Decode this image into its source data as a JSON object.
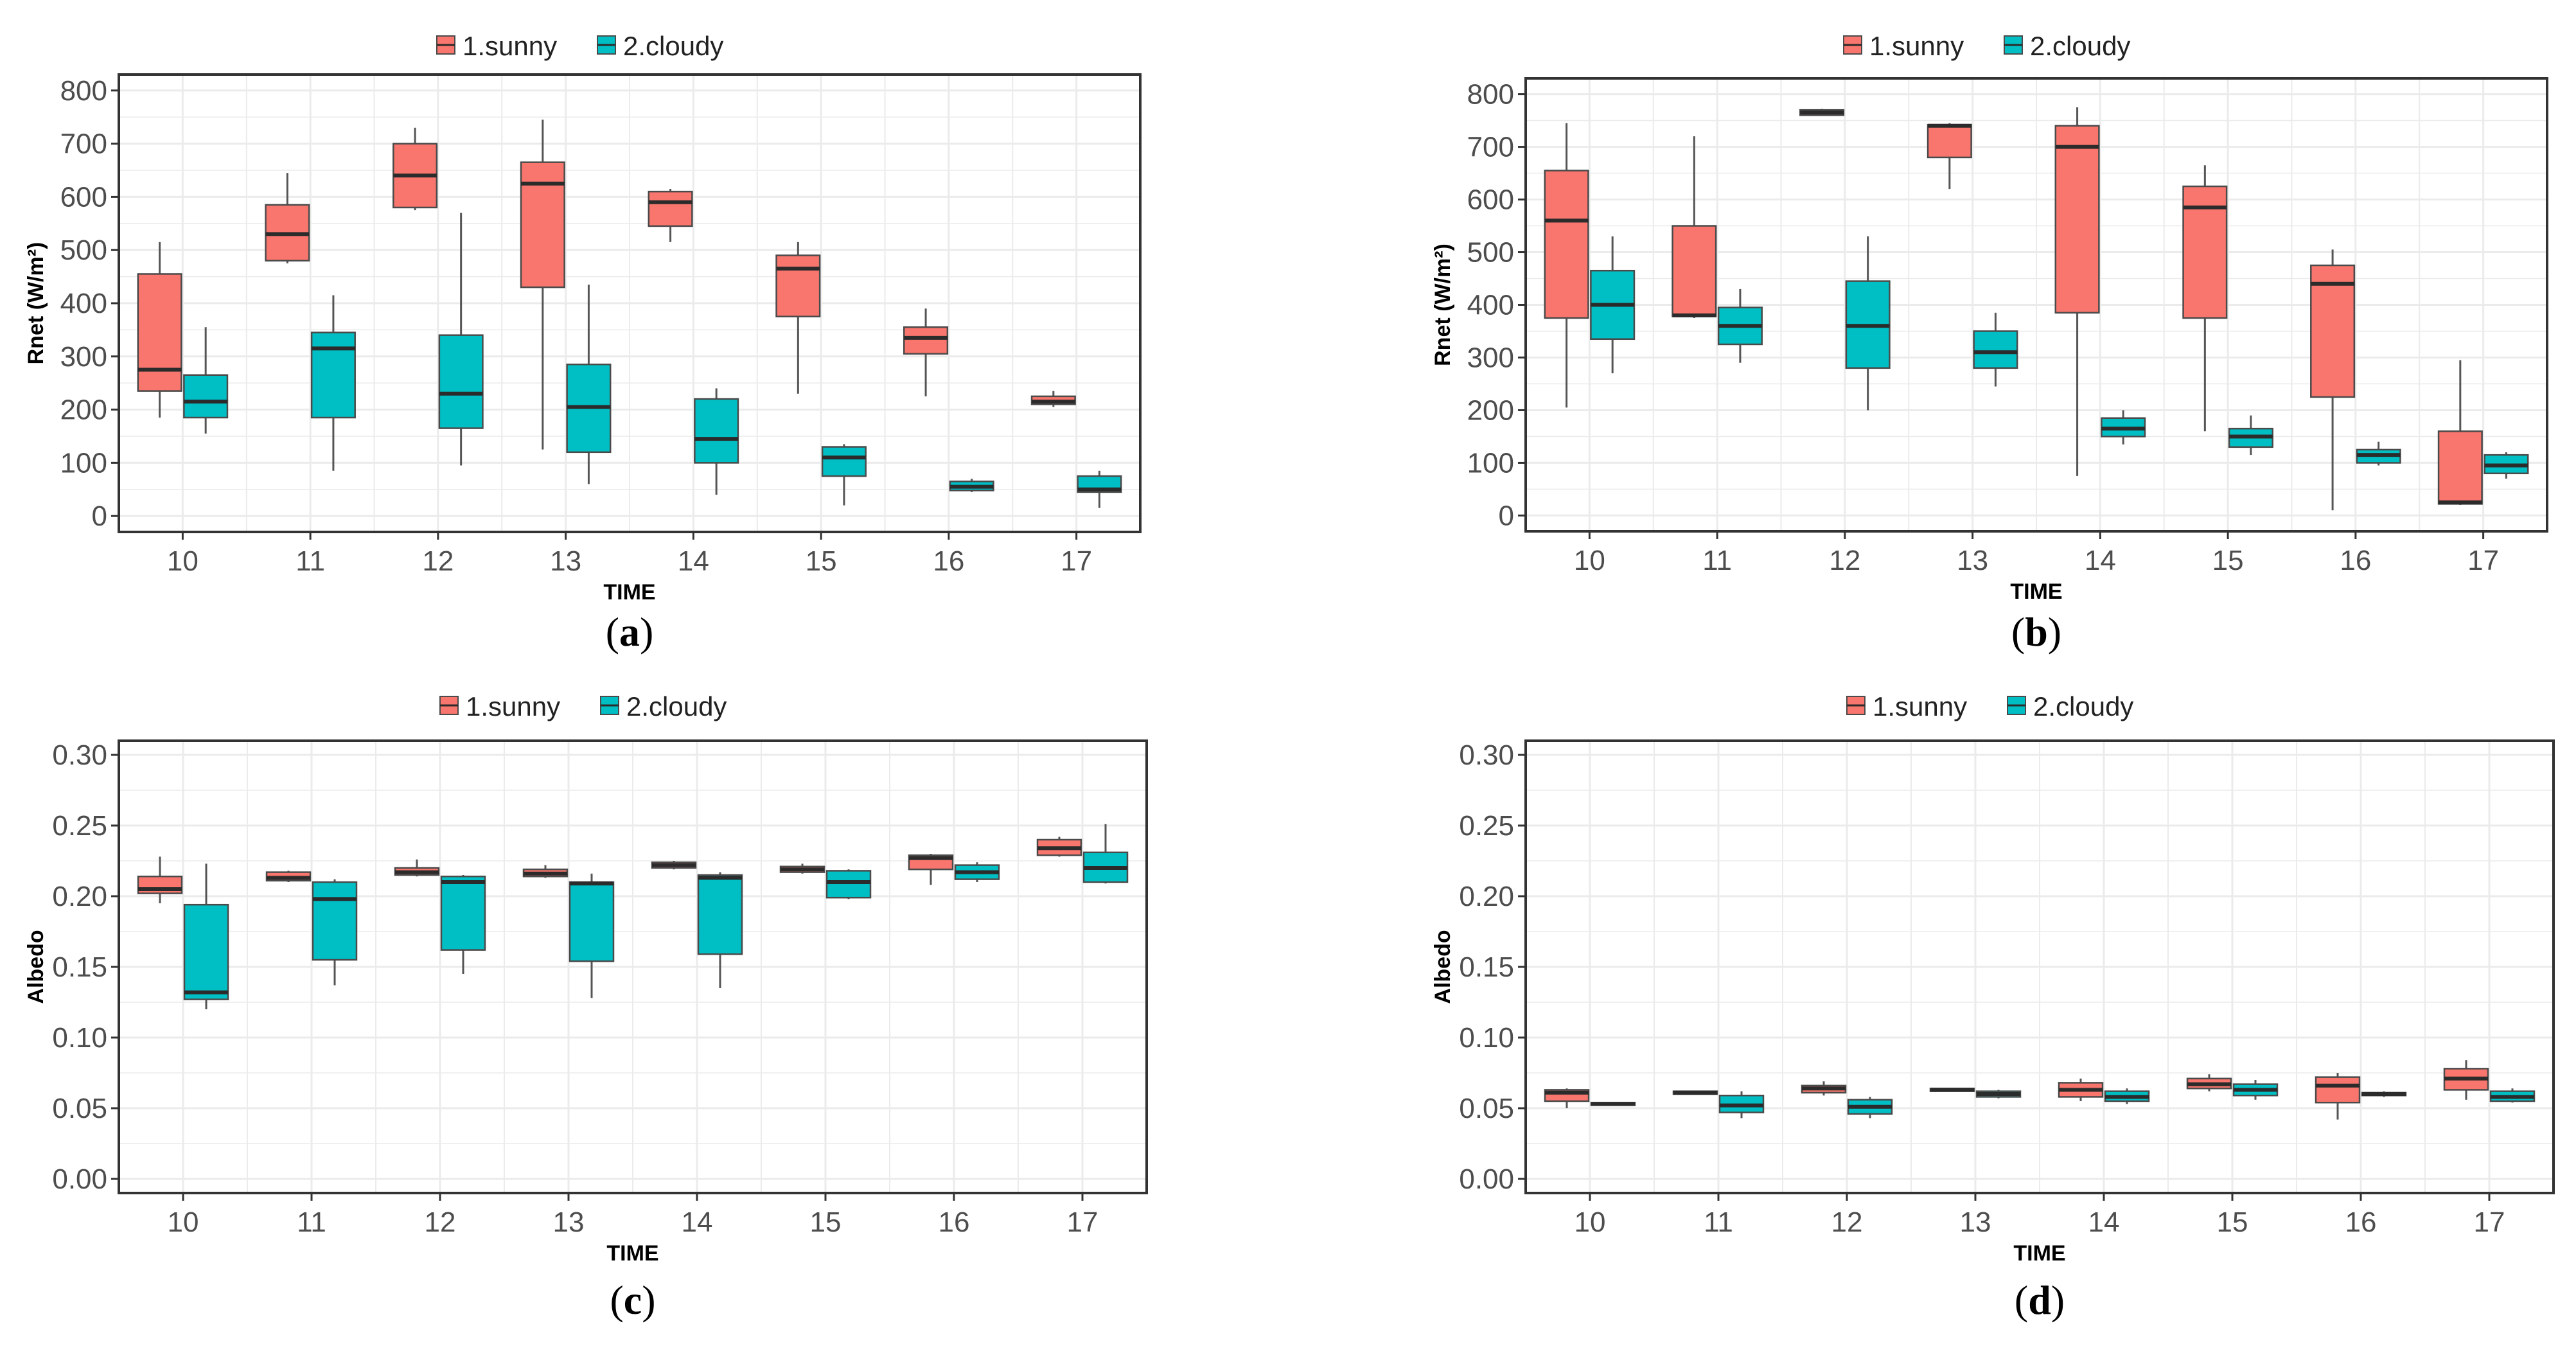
{
  "figure": {
    "colors": {
      "sunny": "#F8766D",
      "cloudy": "#00BFC4",
      "grid": "#ebebeb",
      "frame": "#333333",
      "median": "#2b2b2b"
    }
  },
  "chart_data": [
    {
      "type": "boxplot",
      "caption": "a",
      "xlabel": "TIME",
      "ylabel": "Rnet (W/m²)",
      "ylim": [
        -30,
        830
      ],
      "y_ticks": [
        "0",
        "100",
        "200",
        "300",
        "400",
        "500",
        "600",
        "700",
        "800"
      ],
      "y_tick_values": [
        0,
        100,
        200,
        300,
        400,
        500,
        600,
        700,
        800
      ],
      "categories": [
        "10",
        "11",
        "12",
        "13",
        "14",
        "15",
        "16",
        "17"
      ],
      "legend": [
        "1.sunny",
        "2.cloudy"
      ],
      "series": [
        {
          "name": "1.sunny",
          "boxes": [
            {
              "min": 185,
              "q1": 235,
              "median": 275,
              "q3": 455,
              "max": 515
            },
            {
              "min": 475,
              "q1": 480,
              "median": 530,
              "q3": 585,
              "max": 645
            },
            {
              "min": 575,
              "q1": 580,
              "median": 640,
              "q3": 700,
              "max": 730
            },
            {
              "min": 125,
              "q1": 430,
              "median": 625,
              "q3": 665,
              "max": 745
            },
            {
              "min": 515,
              "q1": 545,
              "median": 590,
              "q3": 610,
              "max": 615
            },
            {
              "min": 230,
              "q1": 375,
              "median": 465,
              "q3": 490,
              "max": 515
            },
            {
              "min": 225,
              "q1": 305,
              "median": 335,
              "q3": 355,
              "max": 390
            },
            {
              "min": 205,
              "q1": 210,
              "median": 215,
              "q3": 225,
              "max": 235
            }
          ]
        },
        {
          "name": "2.cloudy",
          "boxes": [
            {
              "min": 155,
              "q1": 185,
              "median": 215,
              "q3": 265,
              "max": 355
            },
            {
              "min": 85,
              "q1": 185,
              "median": 315,
              "q3": 345,
              "max": 415
            },
            {
              "min": 95,
              "q1": 165,
              "median": 230,
              "q3": 340,
              "max": 570
            },
            {
              "min": 60,
              "q1": 120,
              "median": 205,
              "q3": 285,
              "max": 435
            },
            {
              "min": 40,
              "q1": 100,
              "median": 145,
              "q3": 220,
              "max": 240
            },
            {
              "min": 20,
              "q1": 75,
              "median": 110,
              "q3": 130,
              "max": 135
            },
            {
              "min": 45,
              "q1": 48,
              "median": 55,
              "q3": 65,
              "max": 70
            },
            {
              "min": 15,
              "q1": 45,
              "median": 50,
              "q3": 75,
              "max": 85
            }
          ]
        }
      ]
    },
    {
      "type": "boxplot",
      "caption": "b",
      "xlabel": "TIME",
      "ylabel": "Rnet (W/m²)",
      "ylim": [
        -30,
        830
      ],
      "y_ticks": [
        "0",
        "100",
        "200",
        "300",
        "400",
        "500",
        "600",
        "700",
        "800"
      ],
      "y_tick_values": [
        0,
        100,
        200,
        300,
        400,
        500,
        600,
        700,
        800
      ],
      "categories": [
        "10",
        "11",
        "12",
        "13",
        "14",
        "15",
        "16",
        "17"
      ],
      "legend": [
        "1.sunny",
        "2.cloudy"
      ],
      "series": [
        {
          "name": "1.sunny",
          "boxes": [
            {
              "min": 205,
              "q1": 375,
              "median": 560,
              "q3": 655,
              "max": 745
            },
            {
              "min": 375,
              "q1": 378,
              "median": 380,
              "q3": 550,
              "max": 720
            },
            {
              "min": 760,
              "q1": 760,
              "median": 765,
              "q3": 770,
              "max": 772
            },
            {
              "min": 620,
              "q1": 680,
              "median": 740,
              "q3": 742,
              "max": 745
            },
            {
              "min": 75,
              "q1": 385,
              "median": 700,
              "q3": 740,
              "max": 775
            },
            {
              "min": 160,
              "q1": 375,
              "median": 585,
              "q3": 625,
              "max": 665
            },
            {
              "min": 10,
              "q1": 225,
              "median": 440,
              "q3": 475,
              "max": 505
            },
            {
              "min": 20,
              "q1": 22,
              "median": 25,
              "q3": 160,
              "max": 295
            }
          ]
        },
        {
          "name": "2.cloudy",
          "boxes": [
            {
              "min": 270,
              "q1": 335,
              "median": 400,
              "q3": 465,
              "max": 530
            },
            {
              "min": 290,
              "q1": 325,
              "median": 360,
              "q3": 395,
              "max": 430
            },
            {
              "min": 200,
              "q1": 280,
              "median": 360,
              "q3": 445,
              "max": 530
            },
            {
              "min": 245,
              "q1": 280,
              "median": 310,
              "q3": 350,
              "max": 385
            },
            {
              "min": 135,
              "q1": 150,
              "median": 165,
              "q3": 185,
              "max": 200
            },
            {
              "min": 115,
              "q1": 130,
              "median": 150,
              "q3": 165,
              "max": 190
            },
            {
              "min": 95,
              "q1": 100,
              "median": 115,
              "q3": 125,
              "max": 140
            },
            {
              "min": 70,
              "q1": 80,
              "median": 95,
              "q3": 115,
              "max": 120
            }
          ]
        }
      ]
    },
    {
      "type": "boxplot",
      "caption": "c",
      "xlabel": "TIME",
      "ylabel": "Albedo",
      "ylim": [
        -0.01,
        0.31
      ],
      "y_ticks": [
        "0.00",
        "0.05",
        "0.10",
        "0.15",
        "0.20",
        "0.25",
        "0.30"
      ],
      "y_tick_values": [
        0,
        0.05,
        0.1,
        0.15,
        0.2,
        0.25,
        0.3
      ],
      "categories": [
        "10",
        "11",
        "12",
        "13",
        "14",
        "15",
        "16",
        "17"
      ],
      "legend": [
        "1.sunny",
        "2.cloudy"
      ],
      "series": [
        {
          "name": "1.sunny",
          "boxes": [
            {
              "min": 0.195,
              "q1": 0.202,
              "median": 0.205,
              "q3": 0.214,
              "max": 0.228
            },
            {
              "min": 0.21,
              "q1": 0.211,
              "median": 0.213,
              "q3": 0.217,
              "max": 0.218
            },
            {
              "min": 0.214,
              "q1": 0.215,
              "median": 0.217,
              "q3": 0.22,
              "max": 0.226
            },
            {
              "min": 0.213,
              "q1": 0.214,
              "median": 0.216,
              "q3": 0.219,
              "max": 0.222
            },
            {
              "min": 0.219,
              "q1": 0.22,
              "median": 0.222,
              "q3": 0.224,
              "max": 0.225
            },
            {
              "min": 0.216,
              "q1": 0.217,
              "median": 0.219,
              "q3": 0.221,
              "max": 0.223
            },
            {
              "min": 0.208,
              "q1": 0.219,
              "median": 0.227,
              "q3": 0.229,
              "max": 0.23
            },
            {
              "min": 0.228,
              "q1": 0.229,
              "median": 0.234,
              "q3": 0.24,
              "max": 0.242
            }
          ]
        },
        {
          "name": "2.cloudy",
          "boxes": [
            {
              "min": 0.12,
              "q1": 0.127,
              "median": 0.132,
              "q3": 0.194,
              "max": 0.223
            },
            {
              "min": 0.137,
              "q1": 0.155,
              "median": 0.198,
              "q3": 0.21,
              "max": 0.212
            },
            {
              "min": 0.145,
              "q1": 0.162,
              "median": 0.21,
              "q3": 0.214,
              "max": 0.215
            },
            {
              "min": 0.128,
              "q1": 0.154,
              "median": 0.209,
              "q3": 0.21,
              "max": 0.216
            },
            {
              "min": 0.135,
              "q1": 0.159,
              "median": 0.213,
              "q3": 0.215,
              "max": 0.217
            },
            {
              "min": 0.198,
              "q1": 0.199,
              "median": 0.21,
              "q3": 0.218,
              "max": 0.219
            },
            {
              "min": 0.21,
              "q1": 0.212,
              "median": 0.217,
              "q3": 0.222,
              "max": 0.224
            },
            {
              "min": 0.209,
              "q1": 0.21,
              "median": 0.22,
              "q3": 0.231,
              "max": 0.251
            }
          ]
        }
      ]
    },
    {
      "type": "boxplot",
      "caption": "d",
      "xlabel": "TIME",
      "ylabel": "Albedo",
      "ylim": [
        -0.01,
        0.31
      ],
      "y_ticks": [
        "0.00",
        "0.05",
        "0.10",
        "0.15",
        "0.20",
        "0.25",
        "0.30"
      ],
      "y_tick_values": [
        0,
        0.05,
        0.1,
        0.15,
        0.2,
        0.25,
        0.3
      ],
      "categories": [
        "10",
        "11",
        "12",
        "13",
        "14",
        "15",
        "16",
        "17"
      ],
      "legend": [
        "1.sunny",
        "2.cloudy"
      ],
      "series": [
        {
          "name": "1.sunny",
          "boxes": [
            {
              "min": 0.05,
              "q1": 0.055,
              "median": 0.061,
              "q3": 0.063,
              "max": 0.064
            },
            {
              "min": 0.06,
              "q1": 0.06,
              "median": 0.061,
              "q3": 0.062,
              "max": 0.062
            },
            {
              "min": 0.059,
              "q1": 0.061,
              "median": 0.064,
              "q3": 0.066,
              "max": 0.069
            },
            {
              "min": 0.062,
              "q1": 0.062,
              "median": 0.063,
              "q3": 0.064,
              "max": 0.064
            },
            {
              "min": 0.055,
              "q1": 0.058,
              "median": 0.063,
              "q3": 0.068,
              "max": 0.071
            },
            {
              "min": 0.062,
              "q1": 0.064,
              "median": 0.067,
              "q3": 0.071,
              "max": 0.074
            },
            {
              "min": 0.042,
              "q1": 0.054,
              "median": 0.066,
              "q3": 0.072,
              "max": 0.075
            },
            {
              "min": 0.056,
              "q1": 0.063,
              "median": 0.071,
              "q3": 0.078,
              "max": 0.084
            }
          ]
        },
        {
          "name": "2.cloudy",
          "boxes": [
            {
              "min": 0.052,
              "q1": 0.053,
              "median": 0.053,
              "q3": 0.054,
              "max": 0.054
            },
            {
              "min": 0.043,
              "q1": 0.047,
              "median": 0.052,
              "q3": 0.059,
              "max": 0.062
            },
            {
              "min": 0.043,
              "q1": 0.046,
              "median": 0.051,
              "q3": 0.056,
              "max": 0.058
            },
            {
              "min": 0.057,
              "q1": 0.058,
              "median": 0.06,
              "q3": 0.062,
              "max": 0.063
            },
            {
              "min": 0.053,
              "q1": 0.055,
              "median": 0.058,
              "q3": 0.062,
              "max": 0.064
            },
            {
              "min": 0.056,
              "q1": 0.059,
              "median": 0.063,
              "q3": 0.067,
              "max": 0.07
            },
            {
              "min": 0.058,
              "q1": 0.059,
              "median": 0.06,
              "q3": 0.061,
              "max": 0.062
            },
            {
              "min": 0.054,
              "q1": 0.055,
              "median": 0.058,
              "q3": 0.062,
              "max": 0.064
            }
          ]
        }
      ]
    }
  ]
}
